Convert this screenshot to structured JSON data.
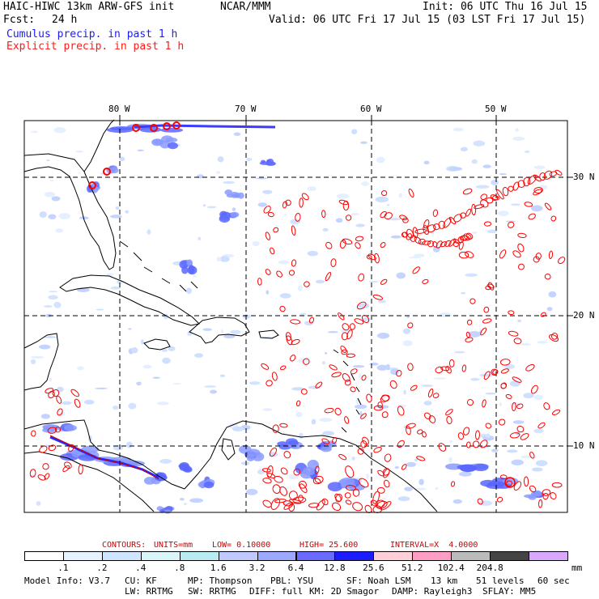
{
  "header": {
    "model_title": "HAIC-HIWC 13km ARW-GFS init",
    "org": "NCAR/MMM",
    "init": "Init: 06 UTC Thu 16 Jul 15",
    "fcst_label": "Fcst:",
    "fcst_value": "24 h",
    "valid": "Valid: 06 UTC Fri 17 Jul 15 (03 LST Fri 17 Jul 15)"
  },
  "legend": {
    "cumulus": "Cumulus precip. in past 1 h",
    "explicit": "Explicit precip. in past 1 h"
  },
  "map": {
    "lon_labels": [
      "80 W",
      "70 W",
      "60 W",
      "50 W"
    ],
    "lat_labels": [
      "30 N",
      "20 N",
      "10 N"
    ],
    "colors": {
      "cumulus": "#4d4dff",
      "explicit": "#ff0000",
      "coast": "#000000",
      "grid": "#000000"
    }
  },
  "contours_line": {
    "label": "CONTOURS:",
    "units": "UNITS=mm",
    "low": "LOW= 0.10000",
    "high": "HIGH= 25.600",
    "interval": "INTERVAL=X  4.0000"
  },
  "colorbar": {
    "colors": [
      "#ffffff",
      "#e6f2ff",
      "#cfe4ff",
      "#d9f5f8",
      "#b8ecf2",
      "#bfc8ff",
      "#9da8ff",
      "#6a6aff",
      "#1c1cff",
      "#ffd0d8",
      "#ff9ec4",
      "#bbbbbb",
      "#444444",
      "#d8a8ff"
    ],
    "labels": [
      ".1",
      ".2",
      ".4",
      ".8",
      "1.6",
      "3.2",
      "6.4",
      "12.8",
      "25.6",
      "51.2",
      "102.4",
      "204.8"
    ],
    "unit": "mm"
  },
  "footer": {
    "line1": [
      "Model Info: V3.7",
      "CU: KF",
      "MP: Thompson",
      "PBL: YSU",
      "SF: Noah LSM",
      "13 km",
      "51 levels",
      "60 sec"
    ],
    "line2": [
      "LW: RRTMG",
      "SW: RRTMG",
      "DIFF: full",
      "KM: 2D Smagor",
      "DAMP: Rayleigh3",
      "SFLAY: MM5"
    ]
  }
}
